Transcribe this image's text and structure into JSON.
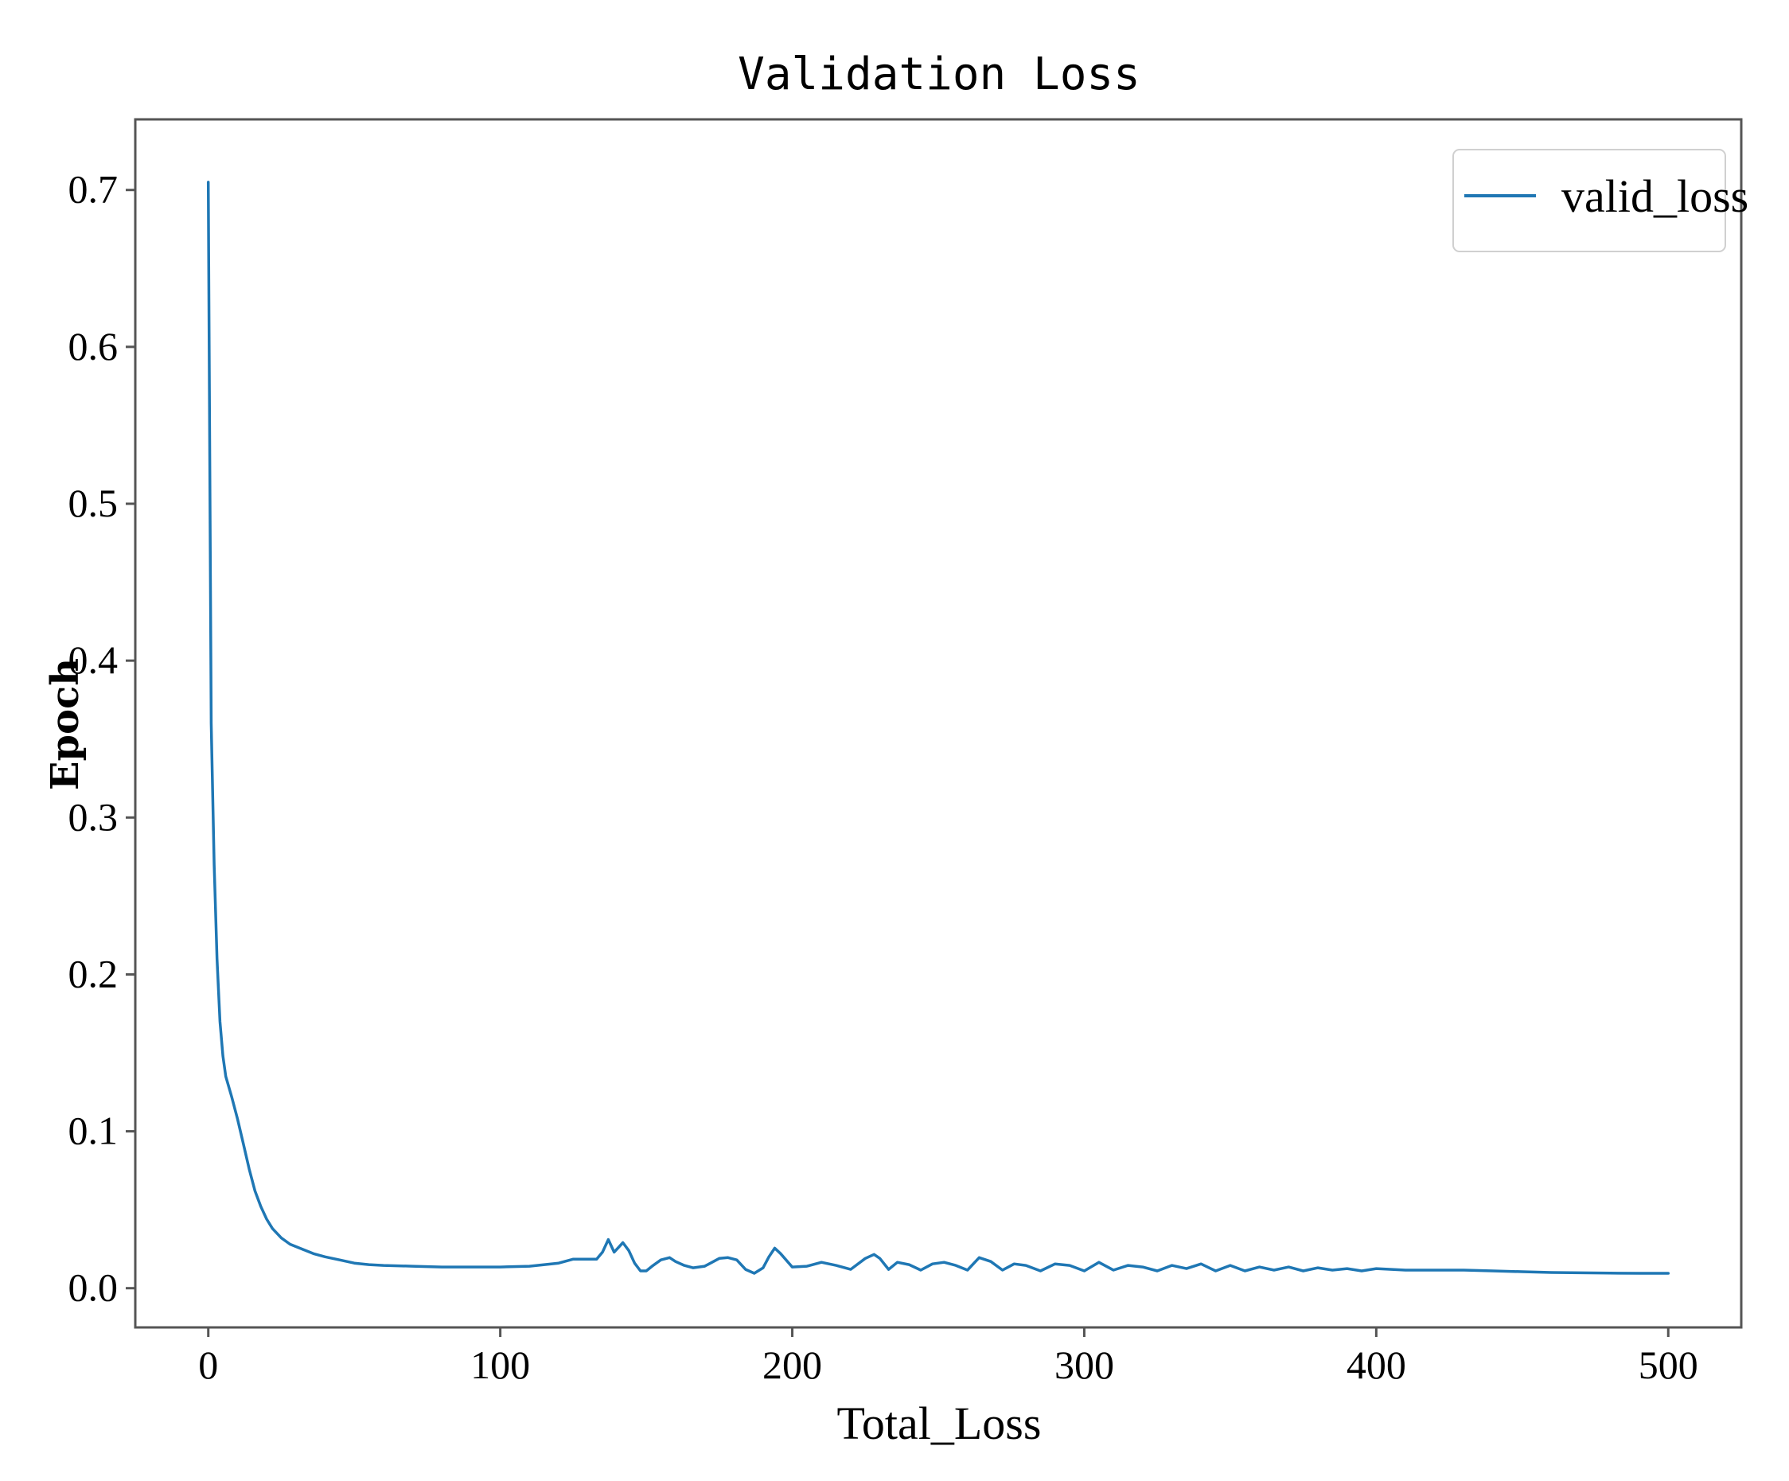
{
  "chart_data": {
    "type": "line",
    "title": "Validation Loss",
    "xlabel": "Total_Loss",
    "ylabel": "Epoch",
    "xlim": [
      -25,
      525
    ],
    "ylim": [
      -0.025,
      0.745
    ],
    "xticks": [
      0,
      100,
      200,
      300,
      400,
      500
    ],
    "yticks": [
      0.0,
      0.1,
      0.2,
      0.3,
      0.4,
      0.5,
      0.6,
      0.7
    ],
    "xtick_labels": [
      "0",
      "100",
      "200",
      "300",
      "400",
      "500"
    ],
    "ytick_labels": [
      "0.0",
      "0.1",
      "0.2",
      "0.3",
      "0.4",
      "0.5",
      "0.6",
      "0.7"
    ],
    "grid": false,
    "legend_position": "top-right",
    "colors": {
      "series": "#1f77b4"
    },
    "series": [
      {
        "name": "valid_loss",
        "x": [
          0,
          1,
          2,
          3,
          4,
          5,
          6,
          8,
          10,
          12,
          14,
          16,
          18,
          20,
          22,
          25,
          28,
          32,
          36,
          40,
          45,
          50,
          55,
          60,
          70,
          80,
          90,
          100,
          110,
          120,
          125,
          130,
          133,
          135,
          137,
          139,
          140,
          142,
          144,
          146,
          148,
          150,
          152,
          155,
          158,
          160,
          163,
          166,
          170,
          175,
          178,
          181,
          184,
          187,
          190,
          192,
          194,
          196,
          200,
          205,
          210,
          215,
          220,
          225,
          228,
          230,
          233,
          236,
          240,
          244,
          248,
          252,
          256,
          260,
          264,
          268,
          272,
          276,
          280,
          285,
          290,
          295,
          300,
          305,
          310,
          315,
          320,
          325,
          330,
          335,
          340,
          345,
          350,
          355,
          360,
          365,
          370,
          375,
          380,
          385,
          390,
          395,
          400,
          410,
          420,
          430,
          440,
          450,
          460,
          470,
          480,
          490,
          500
        ],
        "values": [
          0.705,
          0.36,
          0.27,
          0.21,
          0.17,
          0.148,
          0.135,
          0.122,
          0.108,
          0.092,
          0.076,
          0.062,
          0.052,
          0.044,
          0.038,
          0.032,
          0.028,
          0.025,
          0.022,
          0.02,
          0.018,
          0.016,
          0.015,
          0.0145,
          0.014,
          0.0135,
          0.0135,
          0.0135,
          0.014,
          0.016,
          0.0185,
          0.0185,
          0.0185,
          0.023,
          0.031,
          0.023,
          0.025,
          0.029,
          0.024,
          0.016,
          0.011,
          0.011,
          0.014,
          0.018,
          0.0195,
          0.017,
          0.0145,
          0.013,
          0.014,
          0.019,
          0.0195,
          0.018,
          0.012,
          0.0095,
          0.013,
          0.02,
          0.0255,
          0.022,
          0.0135,
          0.014,
          0.0165,
          0.0145,
          0.012,
          0.019,
          0.0215,
          0.019,
          0.012,
          0.0165,
          0.015,
          0.0115,
          0.0155,
          0.0165,
          0.0145,
          0.0115,
          0.0195,
          0.017,
          0.0115,
          0.0155,
          0.0145,
          0.011,
          0.0155,
          0.0145,
          0.011,
          0.0165,
          0.0115,
          0.0145,
          0.0135,
          0.011,
          0.0145,
          0.0125,
          0.0155,
          0.011,
          0.0145,
          0.011,
          0.0135,
          0.0115,
          0.0135,
          0.011,
          0.013,
          0.0115,
          0.0125,
          0.011,
          0.0125,
          0.0115,
          0.0115,
          0.0115,
          0.011,
          0.0105,
          0.01,
          0.0098,
          0.0096,
          0.0095,
          0.0095
        ]
      }
    ]
  }
}
